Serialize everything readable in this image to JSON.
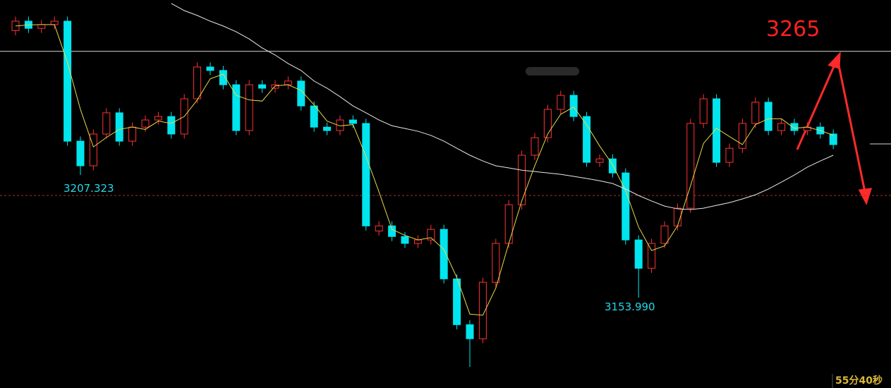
{
  "chart_data": {
    "type": "candlestick",
    "ylim": [
      3114.8,
      3283.3
    ],
    "up_color": "#ff3232",
    "down_color": "#00e5ee",
    "open": [
      3270.0,
      3274.1,
      3271.0,
      3272.6,
      3274.1,
      3222.0,
      3211.3,
      3225.1,
      3234.3,
      3222.0,
      3228.1,
      3231.2,
      3232.7,
      3225.1,
      3240.4,
      3254.2,
      3252.7,
      3246.5,
      3226.6,
      3246.5,
      3245.0,
      3246.5,
      3248.1,
      3237.3,
      3228.1,
      3226.6,
      3231.2,
      3229.7,
      3183.0,
      3185.2,
      3180.6,
      3177.6,
      3179.1,
      3183.7,
      3162.2,
      3142.3,
      3136.2,
      3160.7,
      3177.6,
      3194.4,
      3215.9,
      3223.5,
      3235.8,
      3241.9,
      3232.7,
      3212.8,
      3214.3,
      3208.2,
      3179.1,
      3166.8,
      3177.6,
      3185.2,
      3192.9,
      3229.7,
      3240.4,
      3212.8,
      3218.9,
      3229.7,
      3238.9,
      3226.6,
      3229.7,
      3226.6,
      3228.1,
      3225.1
    ],
    "high": [
      3276.1,
      3276.1,
      3274.6,
      3276.1,
      3276.1,
      3224.0,
      3227.1,
      3236.3,
      3236.3,
      3230.1,
      3233.2,
      3234.7,
      3234.7,
      3242.4,
      3256.2,
      3256.2,
      3254.7,
      3248.5,
      3248.5,
      3248.5,
      3248.5,
      3250.1,
      3250.1,
      3239.3,
      3230.1,
      3233.2,
      3233.2,
      3231.7,
      3187.2,
      3187.2,
      3182.6,
      3181.1,
      3185.7,
      3185.7,
      3164.2,
      3144.3,
      3162.7,
      3179.6,
      3196.4,
      3217.9,
      3225.5,
      3237.8,
      3243.9,
      3243.9,
      3234.7,
      3216.3,
      3216.3,
      3210.2,
      3181.1,
      3179.6,
      3187.2,
      3194.9,
      3231.7,
      3242.4,
      3242.4,
      3220.9,
      3231.7,
      3240.9,
      3240.9,
      3231.7,
      3231.7,
      3230.1,
      3230.1,
      3227.1
    ],
    "low": [
      3268.0,
      3269.0,
      3269.0,
      3270.6,
      3220.0,
      3207.3,
      3209.3,
      3223.1,
      3220.0,
      3220.0,
      3226.1,
      3229.2,
      3223.1,
      3223.1,
      3238.4,
      3250.7,
      3244.5,
      3224.6,
      3224.6,
      3243.0,
      3243.0,
      3244.5,
      3235.3,
      3226.1,
      3224.6,
      3224.6,
      3227.7,
      3183.2,
      3181.0,
      3178.6,
      3175.6,
      3175.6,
      3177.1,
      3160.2,
      3140.3,
      3124.0,
      3134.2,
      3158.7,
      3175.6,
      3192.4,
      3213.9,
      3221.5,
      3233.8,
      3230.7,
      3210.8,
      3210.8,
      3206.2,
      3177.1,
      3154.0,
      3164.8,
      3175.6,
      3183.2,
      3190.9,
      3227.7,
      3210.8,
      3210.8,
      3216.9,
      3227.7,
      3224.6,
      3224.6,
      3224.6,
      3224.6,
      3223.1,
      3218.5
    ],
    "close": [
      3274.1,
      3271.0,
      3272.6,
      3274.1,
      3222.0,
      3211.3,
      3225.1,
      3234.3,
      3222.0,
      3228.1,
      3231.2,
      3232.7,
      3225.1,
      3240.4,
      3254.2,
      3252.7,
      3246.5,
      3226.6,
      3246.5,
      3245.0,
      3246.5,
      3248.1,
      3237.3,
      3228.1,
      3226.6,
      3231.2,
      3229.7,
      3185.2,
      3185.2,
      3180.6,
      3177.6,
      3179.1,
      3183.7,
      3162.2,
      3142.3,
      3136.2,
      3160.7,
      3177.6,
      3194.4,
      3215.9,
      3223.5,
      3235.8,
      3241.9,
      3232.7,
      3212.8,
      3214.3,
      3208.2,
      3179.1,
      3166.8,
      3177.6,
      3185.2,
      3192.9,
      3229.7,
      3240.4,
      3212.8,
      3218.9,
      3229.7,
      3238.9,
      3226.6,
      3229.7,
      3226.6,
      3228.1,
      3225.1,
      3220.5
    ],
    "lines": [
      {
        "color": "#e8d84a",
        "values": [
          3272.0,
          3272.5,
          3272.6,
          3272.6,
          3256.2,
          3235.8,
          3219.5,
          3223.6,
          3227.1,
          3228.1,
          3227.1,
          3230.7,
          3229.7,
          3232.7,
          3239.9,
          3249.1,
          3251.1,
          3241.9,
          3239.9,
          3239.4,
          3246.0,
          3246.5,
          3244.0,
          3237.8,
          3230.7,
          3228.6,
          3229.2,
          3215.4,
          3200.0,
          3183.7,
          3181.1,
          3179.1,
          3180.1,
          3175.0,
          3162.7,
          3146.9,
          3146.4,
          3158.2,
          3177.6,
          3196.0,
          3211.3,
          3225.1,
          3233.7,
          3236.8,
          3229.1,
          3219.9,
          3211.8,
          3200.5,
          3184.7,
          3174.5,
          3176.5,
          3185.2,
          3202.6,
          3221.0,
          3227.6,
          3224.0,
          3220.5,
          3229.2,
          3231.7,
          3231.7,
          3227.6,
          3228.1,
          3226.6,
          3224.6
        ]
      },
      {
        "color": "#e8e8e8",
        "values": [
          null,
          null,
          null,
          null,
          null,
          null,
          null,
          null,
          null,
          null,
          null,
          null,
          3281.8,
          3278.7,
          3276.6,
          3274.1,
          3272.0,
          3269.5,
          3266.4,
          3262.5,
          3259.4,
          3255.7,
          3252.7,
          3248.1,
          3245.0,
          3241.3,
          3237.3,
          3234.3,
          3231.2,
          3228.7,
          3227.5,
          3226.3,
          3224.5,
          3222.0,
          3218.9,
          3215.9,
          3213.4,
          3211.3,
          3210.4,
          3209.4,
          3208.8,
          3208.2,
          3207.6,
          3206.7,
          3205.8,
          3204.8,
          3203.6,
          3201.2,
          3198.4,
          3196.0,
          3193.8,
          3192.6,
          3192.3,
          3192.9,
          3194.1,
          3195.3,
          3196.9,
          3198.7,
          3201.2,
          3204.2,
          3207.3,
          3210.7,
          3213.4,
          3215.9
        ]
      }
    ],
    "hlines": [
      {
        "value": 3261.0,
        "color": "#d8d8d8",
        "style": "solid"
      },
      {
        "value": 3198.4,
        "color": "#b02828",
        "style": "dashed"
      }
    ],
    "annotations": [
      "3207.323",
      "3153.990",
      "3265"
    ],
    "timer": "55分40秒"
  }
}
